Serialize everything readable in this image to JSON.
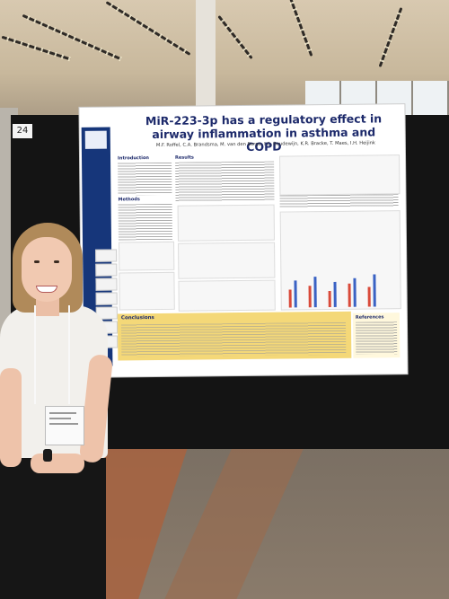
{
  "board": {
    "number": "24"
  },
  "poster": {
    "title": "MiR-223-3p has a regulatory effect in airway inflammation in asthma and COPD",
    "authors": "M.F. Roffel, C.A. Brandsma, M. van den Berge, I.C. Boudewijn, K.R. Bracke, T. Maes, I.H. Heijink",
    "sections": {
      "introduction": "Introduction",
      "results": "Results",
      "methods": "Methods",
      "conclusions": "Conclusions",
      "references": "References"
    },
    "colors": {
      "sidebar": "#16367a",
      "title": "#1d2a6b",
      "conclusions_box": "#f4d878"
    }
  }
}
